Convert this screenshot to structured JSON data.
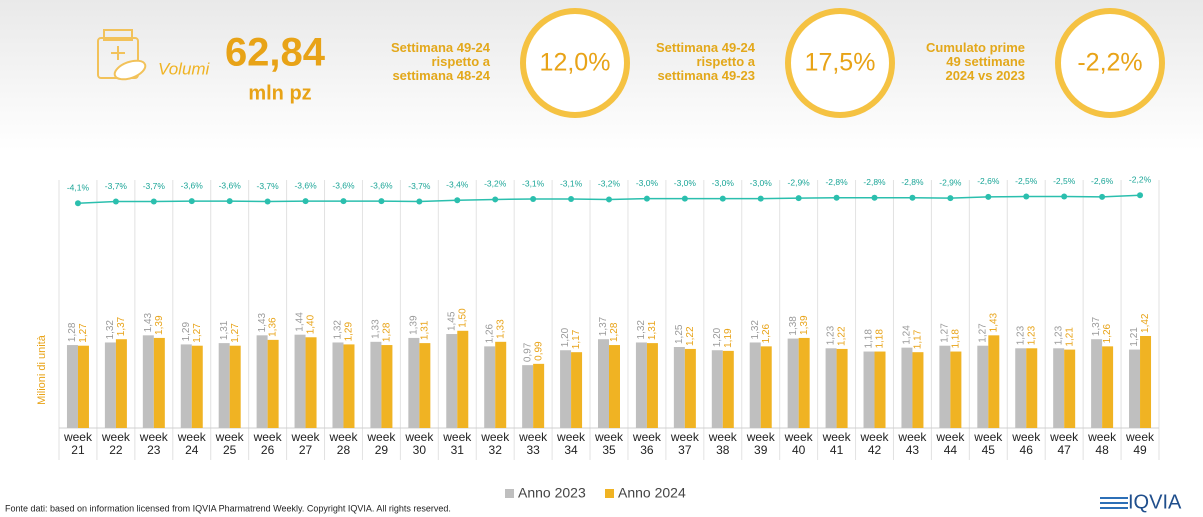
{
  "header": {
    "label": "Volumi",
    "value": "62,84",
    "unit": "mln pz"
  },
  "kpis": [
    {
      "lines": [
        "Settimana 49-24",
        "rispetto a",
        "settimana 48-24"
      ],
      "value": "12,0%"
    },
    {
      "lines": [
        "Settimana 49-24",
        "rispetto a",
        "settimana 49-23"
      ],
      "value": "17,5%"
    },
    {
      "lines": [
        "Cumulato prime",
        "49 settimane",
        "2024 vs 2023"
      ],
      "value": "-2,2%"
    }
  ],
  "chart_data": {
    "type": "bar",
    "y_label": "Milioni di unità",
    "categories": [
      "week 21",
      "week 22",
      "week 23",
      "week 24",
      "week 25",
      "week 26",
      "week 27",
      "week 28",
      "week 29",
      "week 30",
      "week 31",
      "week 32",
      "week 33",
      "week 34",
      "week 35",
      "week 36",
      "week 37",
      "week 38",
      "week 39",
      "week 40",
      "week 41",
      "week 42",
      "week 43",
      "week 44",
      "week 45",
      "week 46",
      "week 47",
      "week 48",
      "week 49"
    ],
    "ylim": [
      0,
      2.5
    ],
    "y2lim": [
      -40,
      0
    ],
    "series": [
      {
        "name": "Anno 2023",
        "color": "#bfbfbf",
        "values": [
          1.28,
          1.32,
          1.43,
          1.29,
          1.31,
          1.43,
          1.44,
          1.32,
          1.33,
          1.39,
          1.45,
          1.26,
          0.97,
          1.2,
          1.37,
          1.32,
          1.25,
          1.2,
          1.32,
          1.38,
          1.23,
          1.18,
          1.24,
          1.27,
          1.27,
          1.23,
          1.23,
          1.37,
          1.21
        ],
        "value_labels": [
          "1,28",
          "1,32",
          "1,43",
          "1,29",
          "1,31",
          "1,43",
          "1,44",
          "1,32",
          "1,33",
          "1,39",
          "1,45",
          "1,26",
          "0,97",
          "1,20",
          "1,37",
          "1,32",
          "1,25",
          "1,20",
          "1,32",
          "1,38",
          "1,23",
          "1,18",
          "1,24",
          "1,27",
          "1,27",
          "1,23",
          "1,23",
          "1,37",
          "1,21"
        ]
      },
      {
        "name": "Anno 2024",
        "color": "#f0b323",
        "values": [
          1.27,
          1.37,
          1.39,
          1.27,
          1.27,
          1.36,
          1.4,
          1.29,
          1.28,
          1.31,
          1.5,
          1.33,
          0.99,
          1.17,
          1.28,
          1.31,
          1.22,
          1.19,
          1.26,
          1.39,
          1.22,
          1.18,
          1.17,
          1.18,
          1.43,
          1.23,
          1.21,
          1.26,
          1.42
        ],
        "value_labels": [
          "1,27",
          "1,37",
          "1,39",
          "1,27",
          "1,27",
          "1,36",
          "1,40",
          "1,29",
          "1,28",
          "1,31",
          "1,50",
          "1,33",
          "0,99",
          "1,17",
          "1,28",
          "1,31",
          "1,22",
          "1,19",
          "1,26",
          "1,39",
          "1,22",
          "1,18",
          "1,17",
          "1,18",
          "1,43",
          "1,23",
          "1,21",
          "1,26",
          "1,42"
        ]
      },
      {
        "type": "line",
        "axis": "y2",
        "color": "#2bbfae",
        "values": [
          -4.1,
          -3.7,
          -3.7,
          -3.6,
          -3.6,
          -3.7,
          -3.6,
          -3.6,
          -3.6,
          -3.7,
          -3.4,
          -3.2,
          -3.1,
          -3.1,
          -3.2,
          -3.0,
          -3.0,
          -3.0,
          -3.0,
          -2.9,
          -2.8,
          -2.8,
          -2.8,
          -2.9,
          -2.6,
          -2.5,
          -2.5,
          -2.6,
          -2.2
        ],
        "value_labels": [
          "-4,1%",
          "-3,7%",
          "-3,7%",
          "-3,6%",
          "-3,6%",
          "-3,7%",
          "-3,6%",
          "-3,6%",
          "-3,6%",
          "-3,7%",
          "-3,4%",
          "-3,2%",
          "-3,1%",
          "-3,1%",
          "-3,2%",
          "-3,0%",
          "-3,0%",
          "-3,0%",
          "-3,0%",
          "-2,9%",
          "-2,8%",
          "-2,8%",
          "-2,8%",
          "-2,9%",
          "-2,6%",
          "-2,5%",
          "-2,5%",
          "-2,6%",
          "-2,2%"
        ]
      }
    ]
  },
  "footer": {
    "source": "Fonte dati: based on information licensed from IQVIA Pharmatrend Weekly. Copyright IQVIA. All rights reserved.",
    "logo": "IQVIA"
  }
}
